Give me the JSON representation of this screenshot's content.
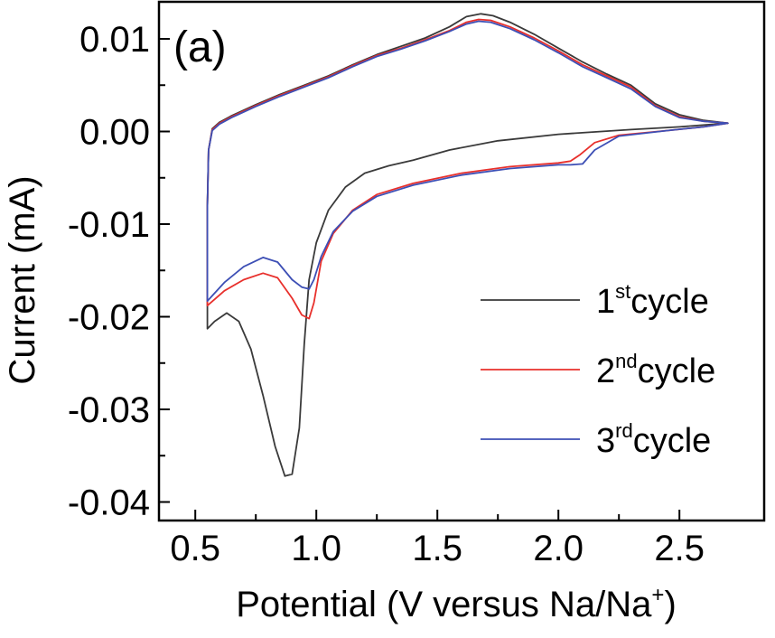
{
  "chart_data": {
    "type": "line",
    "panel_label": "(a)",
    "xlabel": {
      "main": "Potential (V versus Na/Na",
      "sup": "+",
      "end": ")"
    },
    "ylabel": "Current (mA)",
    "xlim": [
      0.35,
      2.85
    ],
    "ylim": [
      -0.042,
      0.014
    ],
    "xticks": [
      0.5,
      1.0,
      1.5,
      2.0,
      2.5
    ],
    "xtick_labels": [
      "0.5",
      "1.0",
      "1.5",
      "2.0",
      "2.5"
    ],
    "yticks": [
      0.01,
      0.0,
      -0.01,
      -0.02,
      -0.03,
      -0.04
    ],
    "ytick_labels": [
      "0.01",
      "0.00",
      "-0.01",
      "-0.02",
      "-0.03",
      "-0.04"
    ],
    "legend_position": "right",
    "series": [
      {
        "name": "cycle",
        "num": "1",
        "sup": "st",
        "color": "#3a3a3a",
        "points": [
          [
            0.55,
            -0.0213
          ],
          [
            0.58,
            -0.0205
          ],
          [
            0.63,
            -0.0196
          ],
          [
            0.68,
            -0.0205
          ],
          [
            0.73,
            -0.0235
          ],
          [
            0.78,
            -0.0285
          ],
          [
            0.83,
            -0.034
          ],
          [
            0.87,
            -0.0372
          ],
          [
            0.9,
            -0.037
          ],
          [
            0.93,
            -0.032
          ],
          [
            0.95,
            -0.023
          ],
          [
            0.97,
            -0.016
          ],
          [
            1.0,
            -0.012
          ],
          [
            1.05,
            -0.0085
          ],
          [
            1.12,
            -0.006
          ],
          [
            1.2,
            -0.0045
          ],
          [
            1.3,
            -0.0037
          ],
          [
            1.4,
            -0.0031
          ],
          [
            1.55,
            -0.002
          ],
          [
            1.75,
            -0.001
          ],
          [
            2.0,
            -0.0003
          ],
          [
            2.3,
            0.0002
          ],
          [
            2.5,
            0.0005
          ],
          [
            2.7,
            0.0009
          ],
          [
            2.6,
            0.0012
          ],
          [
            2.5,
            0.0018
          ],
          [
            2.4,
            0.003
          ],
          [
            2.3,
            0.005
          ],
          [
            2.2,
            0.0062
          ],
          [
            2.1,
            0.0075
          ],
          [
            2.0,
            0.009
          ],
          [
            1.9,
            0.0105
          ],
          [
            1.8,
            0.0118
          ],
          [
            1.73,
            0.0125
          ],
          [
            1.68,
            0.0127
          ],
          [
            1.62,
            0.0124
          ],
          [
            1.55,
            0.0113
          ],
          [
            1.45,
            0.0101
          ],
          [
            1.35,
            0.0092
          ],
          [
            1.25,
            0.0083
          ],
          [
            1.15,
            0.0072
          ],
          [
            1.05,
            0.006
          ],
          [
            0.95,
            0.005
          ],
          [
            0.85,
            0.004
          ],
          [
            0.75,
            0.0029
          ],
          [
            0.65,
            0.0017
          ],
          [
            0.6,
            0.001
          ],
          [
            0.57,
            0.0003
          ],
          [
            0.555,
            -0.002
          ],
          [
            0.55,
            -0.008
          ],
          [
            0.55,
            -0.015
          ],
          [
            0.55,
            -0.0185
          ]
        ]
      },
      {
        "name": "cycle",
        "num": "2",
        "sup": "nd",
        "color": "#e8302c",
        "points": [
          [
            0.55,
            -0.0188
          ],
          [
            0.62,
            -0.0172
          ],
          [
            0.7,
            -0.016
          ],
          [
            0.78,
            -0.0153
          ],
          [
            0.84,
            -0.0158
          ],
          [
            0.9,
            -0.018
          ],
          [
            0.94,
            -0.0198
          ],
          [
            0.97,
            -0.0202
          ],
          [
            0.99,
            -0.0185
          ],
          [
            1.02,
            -0.014
          ],
          [
            1.07,
            -0.011
          ],
          [
            1.15,
            -0.0085
          ],
          [
            1.25,
            -0.0068
          ],
          [
            1.4,
            -0.0056
          ],
          [
            1.6,
            -0.0045
          ],
          [
            1.8,
            -0.0038
          ],
          [
            2.0,
            -0.0034
          ],
          [
            2.05,
            -0.0032
          ],
          [
            2.09,
            -0.0025
          ],
          [
            2.15,
            -0.0012
          ],
          [
            2.25,
            -0.0004
          ],
          [
            2.45,
            0.0001
          ],
          [
            2.6,
            0.0005
          ],
          [
            2.7,
            0.0009
          ],
          [
            2.6,
            0.0011
          ],
          [
            2.5,
            0.0016
          ],
          [
            2.4,
            0.0028
          ],
          [
            2.3,
            0.0048
          ],
          [
            2.2,
            0.006
          ],
          [
            2.1,
            0.0072
          ],
          [
            2.0,
            0.0087
          ],
          [
            1.9,
            0.0101
          ],
          [
            1.8,
            0.0113
          ],
          [
            1.72,
            0.012
          ],
          [
            1.67,
            0.0121
          ],
          [
            1.62,
            0.0118
          ],
          [
            1.55,
            0.0109
          ],
          [
            1.45,
            0.0099
          ],
          [
            1.35,
            0.009
          ],
          [
            1.25,
            0.0082
          ],
          [
            1.15,
            0.0071
          ],
          [
            1.05,
            0.0059
          ],
          [
            0.95,
            0.0049
          ],
          [
            0.85,
            0.0039
          ],
          [
            0.75,
            0.0028
          ],
          [
            0.65,
            0.0016
          ],
          [
            0.6,
            0.0009
          ],
          [
            0.57,
            0.0002
          ],
          [
            0.555,
            -0.002
          ],
          [
            0.55,
            -0.008
          ],
          [
            0.55,
            -0.015
          ],
          [
            0.55,
            -0.0188
          ]
        ]
      },
      {
        "name": "cycle",
        "num": "3",
        "sup": "rd",
        "color": "#3d4fb5",
        "points": [
          [
            0.55,
            -0.0183
          ],
          [
            0.62,
            -0.0163
          ],
          [
            0.7,
            -0.0146
          ],
          [
            0.78,
            -0.0136
          ],
          [
            0.84,
            -0.0141
          ],
          [
            0.9,
            -0.016
          ],
          [
            0.94,
            -0.0168
          ],
          [
            0.97,
            -0.017
          ],
          [
            0.99,
            -0.016
          ],
          [
            1.02,
            -0.0135
          ],
          [
            1.07,
            -0.0108
          ],
          [
            1.15,
            -0.0086
          ],
          [
            1.25,
            -0.007
          ],
          [
            1.4,
            -0.0058
          ],
          [
            1.6,
            -0.0047
          ],
          [
            1.8,
            -0.004
          ],
          [
            2.0,
            -0.0036
          ],
          [
            2.05,
            -0.0036
          ],
          [
            2.1,
            -0.0035
          ],
          [
            2.15,
            -0.002
          ],
          [
            2.25,
            -0.0005
          ],
          [
            2.45,
            0.0001
          ],
          [
            2.6,
            0.0005
          ],
          [
            2.7,
            0.0009
          ],
          [
            2.6,
            0.0011
          ],
          [
            2.5,
            0.0015
          ],
          [
            2.4,
            0.0027
          ],
          [
            2.3,
            0.0046
          ],
          [
            2.2,
            0.0058
          ],
          [
            2.1,
            0.007
          ],
          [
            2.0,
            0.0085
          ],
          [
            1.9,
            0.0099
          ],
          [
            1.8,
            0.0111
          ],
          [
            1.72,
            0.0118
          ],
          [
            1.67,
            0.0119
          ],
          [
            1.62,
            0.0116
          ],
          [
            1.55,
            0.0108
          ],
          [
            1.45,
            0.0098
          ],
          [
            1.35,
            0.0089
          ],
          [
            1.25,
            0.0081
          ],
          [
            1.15,
            0.007
          ],
          [
            1.05,
            0.0058
          ],
          [
            0.95,
            0.0048
          ],
          [
            0.85,
            0.0038
          ],
          [
            0.75,
            0.0027
          ],
          [
            0.65,
            0.0015
          ],
          [
            0.6,
            0.0008
          ],
          [
            0.57,
            0.0001
          ],
          [
            0.555,
            -0.002
          ],
          [
            0.55,
            -0.008
          ],
          [
            0.55,
            -0.015
          ],
          [
            0.55,
            -0.0183
          ]
        ]
      }
    ]
  }
}
